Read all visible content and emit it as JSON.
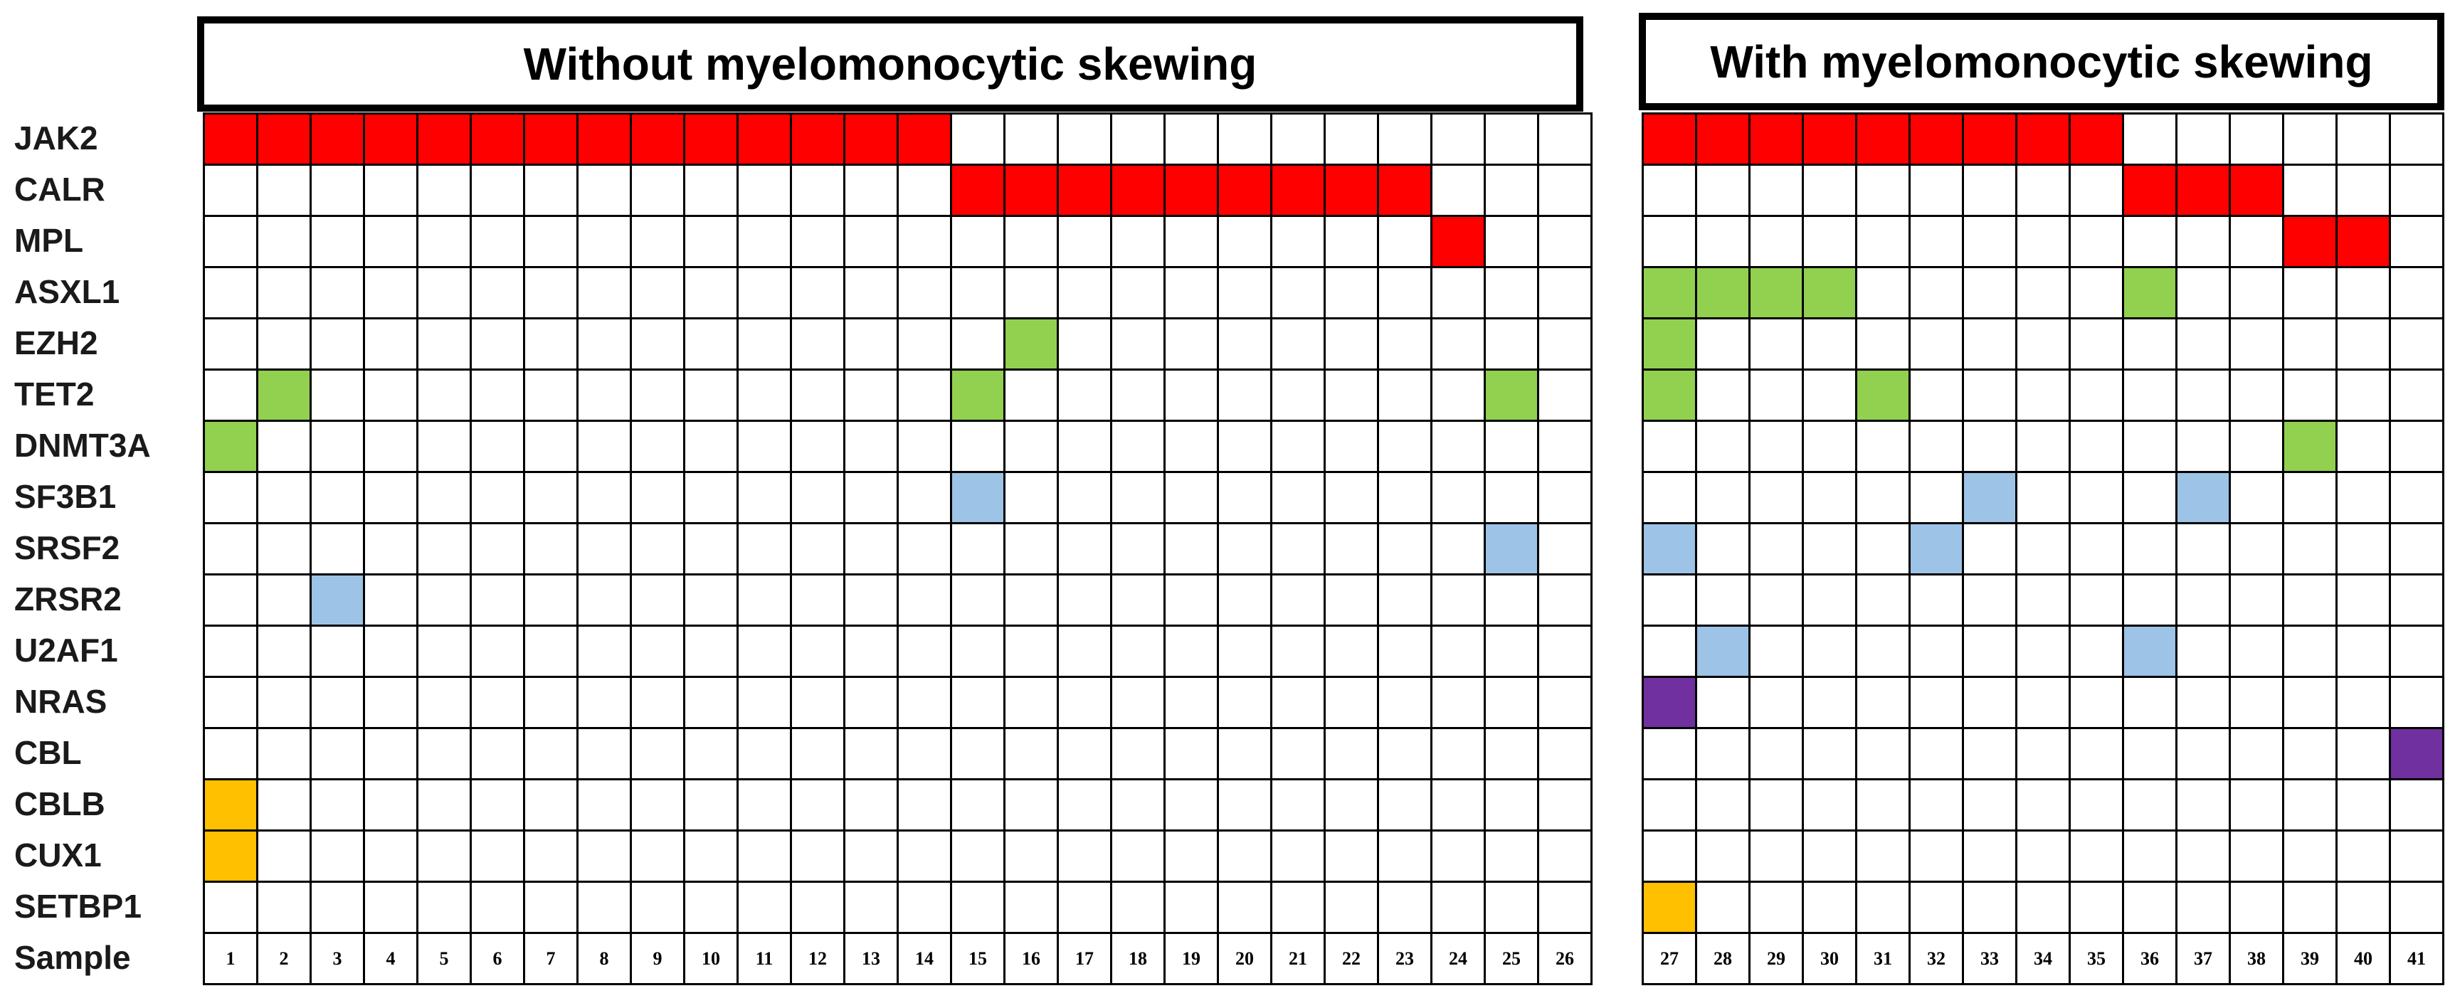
{
  "groups": [
    {
      "title": "Without myelomonocytic skewing",
      "samples": [
        "1",
        "2",
        "3",
        "4",
        "5",
        "6",
        "7",
        "8",
        "9",
        "10",
        "11",
        "12",
        "13",
        "14",
        "15",
        "16",
        "17",
        "18",
        "19",
        "20",
        "21",
        "22",
        "23",
        "24",
        "25",
        "26"
      ]
    },
    {
      "title": "With myelomonocytic skewing",
      "samples": [
        "27",
        "28",
        "29",
        "30",
        "31",
        "32",
        "33",
        "34",
        "35",
        "36",
        "37",
        "38",
        "39",
        "40",
        "41"
      ]
    }
  ],
  "genes": [
    "JAK2",
    "CALR",
    "MPL",
    "ASXL1",
    "EZH2",
    "TET2",
    "DNMT3A",
    "SF3B1",
    "SRSF2",
    "ZRSR2",
    "U2AF1",
    "NRAS",
    "CBL",
    "CBLB",
    "CUX1",
    "SETBP1"
  ],
  "sample_row_label": "Sample",
  "colors": {
    "driver": "#ff0000",
    "epigenetic": "#92d050",
    "splicing": "#9dc3e6",
    "signaling": "#7030a0",
    "other": "#ffc000"
  },
  "gene_category": {
    "JAK2": "driver",
    "CALR": "driver",
    "MPL": "driver",
    "ASXL1": "epigenetic",
    "EZH2": "epigenetic",
    "TET2": "epigenetic",
    "DNMT3A": "epigenetic",
    "SF3B1": "splicing",
    "SRSF2": "splicing",
    "ZRSR2": "splicing",
    "U2AF1": "splicing",
    "NRAS": "signaling",
    "CBL": "signaling",
    "CBLB": "other",
    "CUX1": "other",
    "SETBP1": "other"
  },
  "mutations": {
    "JAK2": [
      1,
      2,
      3,
      4,
      5,
      6,
      7,
      8,
      9,
      10,
      11,
      12,
      13,
      14,
      27,
      28,
      29,
      30,
      31,
      32,
      33,
      34,
      35
    ],
    "CALR": [
      15,
      16,
      17,
      18,
      19,
      20,
      21,
      22,
      23,
      36,
      37,
      38
    ],
    "MPL": [
      24,
      39,
      40
    ],
    "ASXL1": [
      27,
      28,
      29,
      30,
      36
    ],
    "EZH2": [
      16,
      27
    ],
    "TET2": [
      2,
      15,
      25,
      27,
      31
    ],
    "DNMT3A": [
      1,
      39
    ],
    "SF3B1": [
      15,
      33,
      37
    ],
    "SRSF2": [
      25,
      27,
      32
    ],
    "ZRSR2": [
      3
    ],
    "U2AF1": [
      28,
      36
    ],
    "NRAS": [
      27
    ],
    "CBL": [
      41
    ],
    "CBLB": [
      1
    ],
    "CUX1": [
      1
    ],
    "SETBP1": [
      27
    ]
  }
}
